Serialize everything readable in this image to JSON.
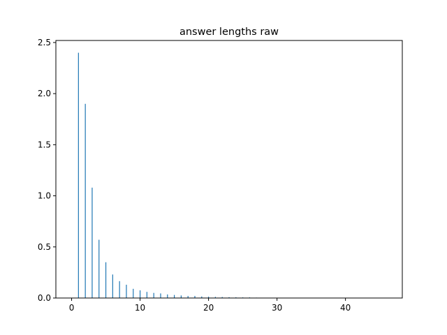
{
  "chart_data": {
    "type": "bar",
    "title": "answer lengths raw",
    "xlabel": "",
    "ylabel": "",
    "xlim": [
      -2.3,
      48.3
    ],
    "ylim": [
      0,
      2.52
    ],
    "xticks": [
      0,
      10,
      20,
      30,
      40
    ],
    "yticks": [
      0.0,
      0.5,
      1.0,
      1.5,
      2.0,
      2.5
    ],
    "grid": false,
    "bar_color": "#1f77b4",
    "x": [
      1,
      2,
      3,
      4,
      5,
      6,
      7,
      8,
      9,
      10,
      11,
      12,
      13,
      14,
      15,
      16,
      17,
      18,
      19,
      20,
      21,
      22,
      23,
      24,
      25,
      26,
      27,
      28,
      29,
      30,
      31,
      32,
      33,
      34,
      35,
      36,
      37,
      38,
      39,
      40,
      41,
      42,
      43,
      44,
      45,
      46
    ],
    "values": [
      2.4,
      1.9,
      1.08,
      0.57,
      0.35,
      0.23,
      0.165,
      0.13,
      0.09,
      0.075,
      0.06,
      0.05,
      0.045,
      0.035,
      0.03,
      0.025,
      0.02,
      0.02,
      0.015,
      0.013,
      0.011,
      0.01,
      0.008,
      0.007,
      0.006,
      0.006,
      0.004,
      0.003,
      0.003,
      0.002,
      0.002,
      0.002,
      0.001,
      0.001,
      0.001,
      0.001,
      0.001,
      0.001,
      0.001,
      0.001,
      0.001,
      0.001,
      0.001,
      0.001,
      0.001,
      0.001
    ]
  }
}
